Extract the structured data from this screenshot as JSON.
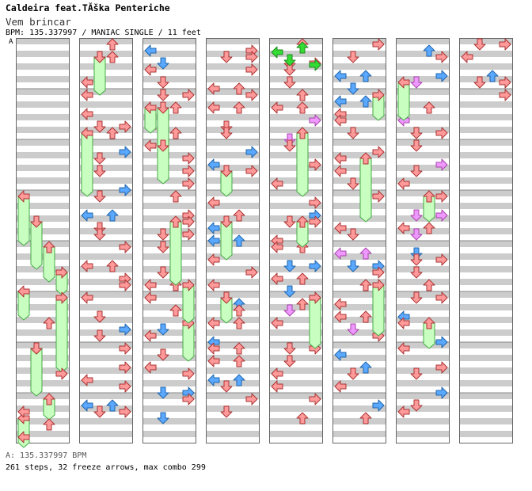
{
  "header": {
    "title": "Caldeira feat.TĂška Penteriche",
    "subtitle": "Vem brincar",
    "info": "BPM: 135.337997 / MANIAC SINGLE / 11 feet"
  },
  "chart_data": {
    "type": "step-chart",
    "section_label": "A",
    "columns": 8,
    "lanes": [
      "left",
      "down",
      "up",
      "right"
    ],
    "measures_per_column": 8,
    "measure_marker_label": "A"
  },
  "footer": {
    "bpm_text": "A: 135.337997 BPM",
    "stats_text": "261 steps, 32 freeze arrows, max combo 299"
  },
  "stats": {
    "steps": 261,
    "freeze_arrows": 32,
    "max_combo": 299,
    "bpm": 135.337997
  },
  "colors": {
    "quarter": "#ff9a9a",
    "eighth": "#5aa8ff",
    "sixteenth": "#ee99ff",
    "other": "#33dd33",
    "freeze_body": "#c8ffc0",
    "freeze_stroke": "#44aa44",
    "stripe": "#cccccc",
    "border": "#666666"
  }
}
